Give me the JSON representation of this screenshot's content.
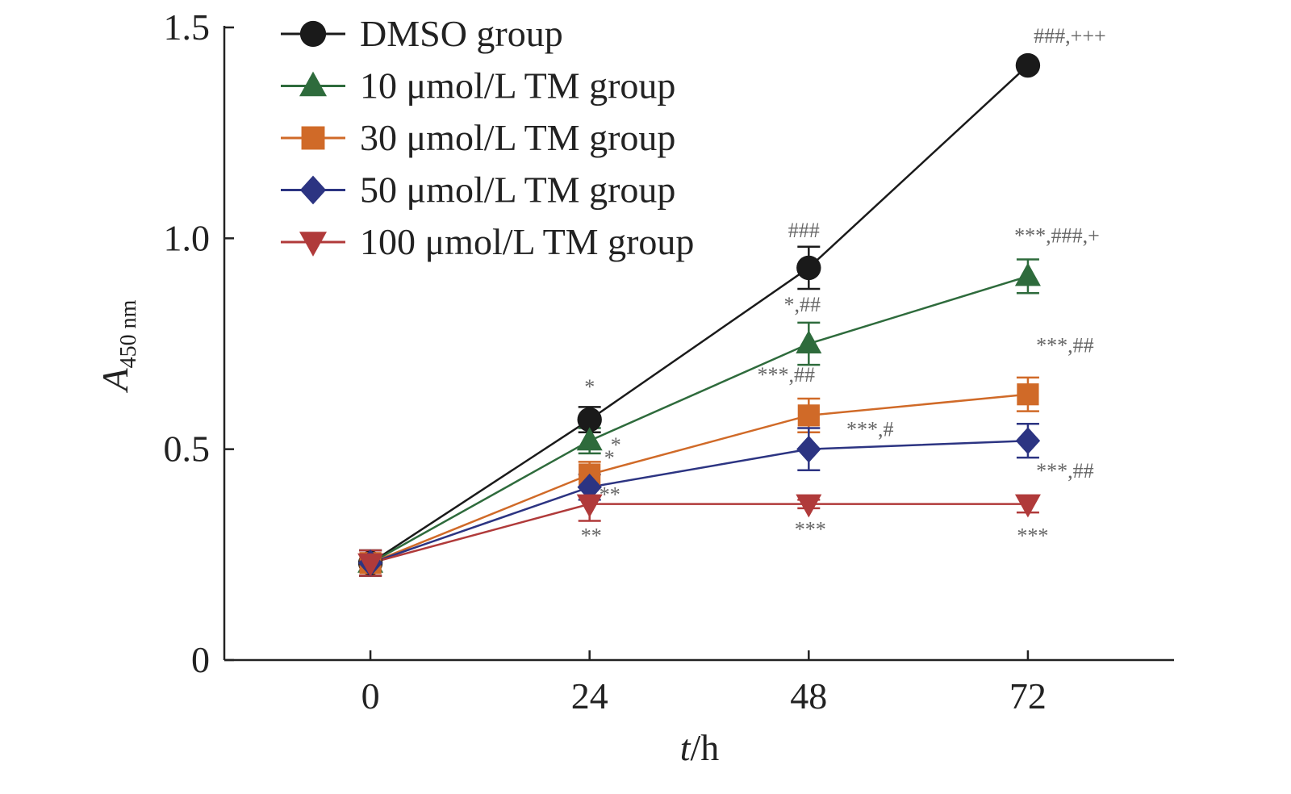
{
  "chart_data": {
    "type": "line",
    "title": "",
    "xlabel": {
      "italic": "t",
      "rest": "/h"
    },
    "ylabel": {
      "main": "A",
      "sub": "450 nm"
    },
    "x": [
      0,
      24,
      48,
      72
    ],
    "x_tick_labels": [
      "0",
      "24",
      "48",
      "72"
    ],
    "xlim": [
      -16,
      88
    ],
    "ylim": [
      0,
      1.5
    ],
    "y_ticks": [
      0,
      0.5,
      1.0,
      1.5
    ],
    "y_tick_labels": [
      "0",
      "0.5",
      "1.0",
      "1.5"
    ],
    "grid": false,
    "legend_position": "top-left",
    "series": [
      {
        "name": "DMSO group",
        "color": "#1a1a1a",
        "marker": "circle",
        "values": [
          0.23,
          0.57,
          0.93,
          1.41
        ],
        "errors": [
          0.03,
          0.03,
          0.05,
          0.0
        ],
        "annotations": [
          "",
          "*",
          "###",
          "###,+++"
        ]
      },
      {
        "name": "10 μmol/L TM group",
        "color": "#2e6b3c",
        "marker": "triangle-up",
        "values": [
          0.23,
          0.52,
          0.75,
          0.91
        ],
        "errors": [
          0.03,
          0.03,
          0.05,
          0.04
        ],
        "annotations": [
          "",
          "*",
          "*,##",
          "***,###,+"
        ]
      },
      {
        "name": "30 μmol/L TM group",
        "color": "#d06a28",
        "marker": "square",
        "values": [
          0.23,
          0.44,
          0.58,
          0.63
        ],
        "errors": [
          0.03,
          0.03,
          0.04,
          0.04
        ],
        "annotations": [
          "",
          "*",
          "***,##",
          "***,##"
        ]
      },
      {
        "name": "50 μmol/L TM group",
        "color": "#2c3482",
        "marker": "diamond",
        "values": [
          0.23,
          0.41,
          0.5,
          0.52
        ],
        "errors": [
          0.03,
          0.03,
          0.05,
          0.04
        ],
        "annotations": [
          "",
          "**",
          "***,#",
          "***,##"
        ]
      },
      {
        "name": "100 μmol/L TM group",
        "color": "#b03a3a",
        "marker": "triangle-down",
        "values": [
          0.23,
          0.37,
          0.37,
          0.37
        ],
        "errors": [
          0.03,
          0.04,
          0.01,
          0.02
        ],
        "annotations": [
          "",
          "**",
          "***",
          "***"
        ]
      }
    ]
  }
}
